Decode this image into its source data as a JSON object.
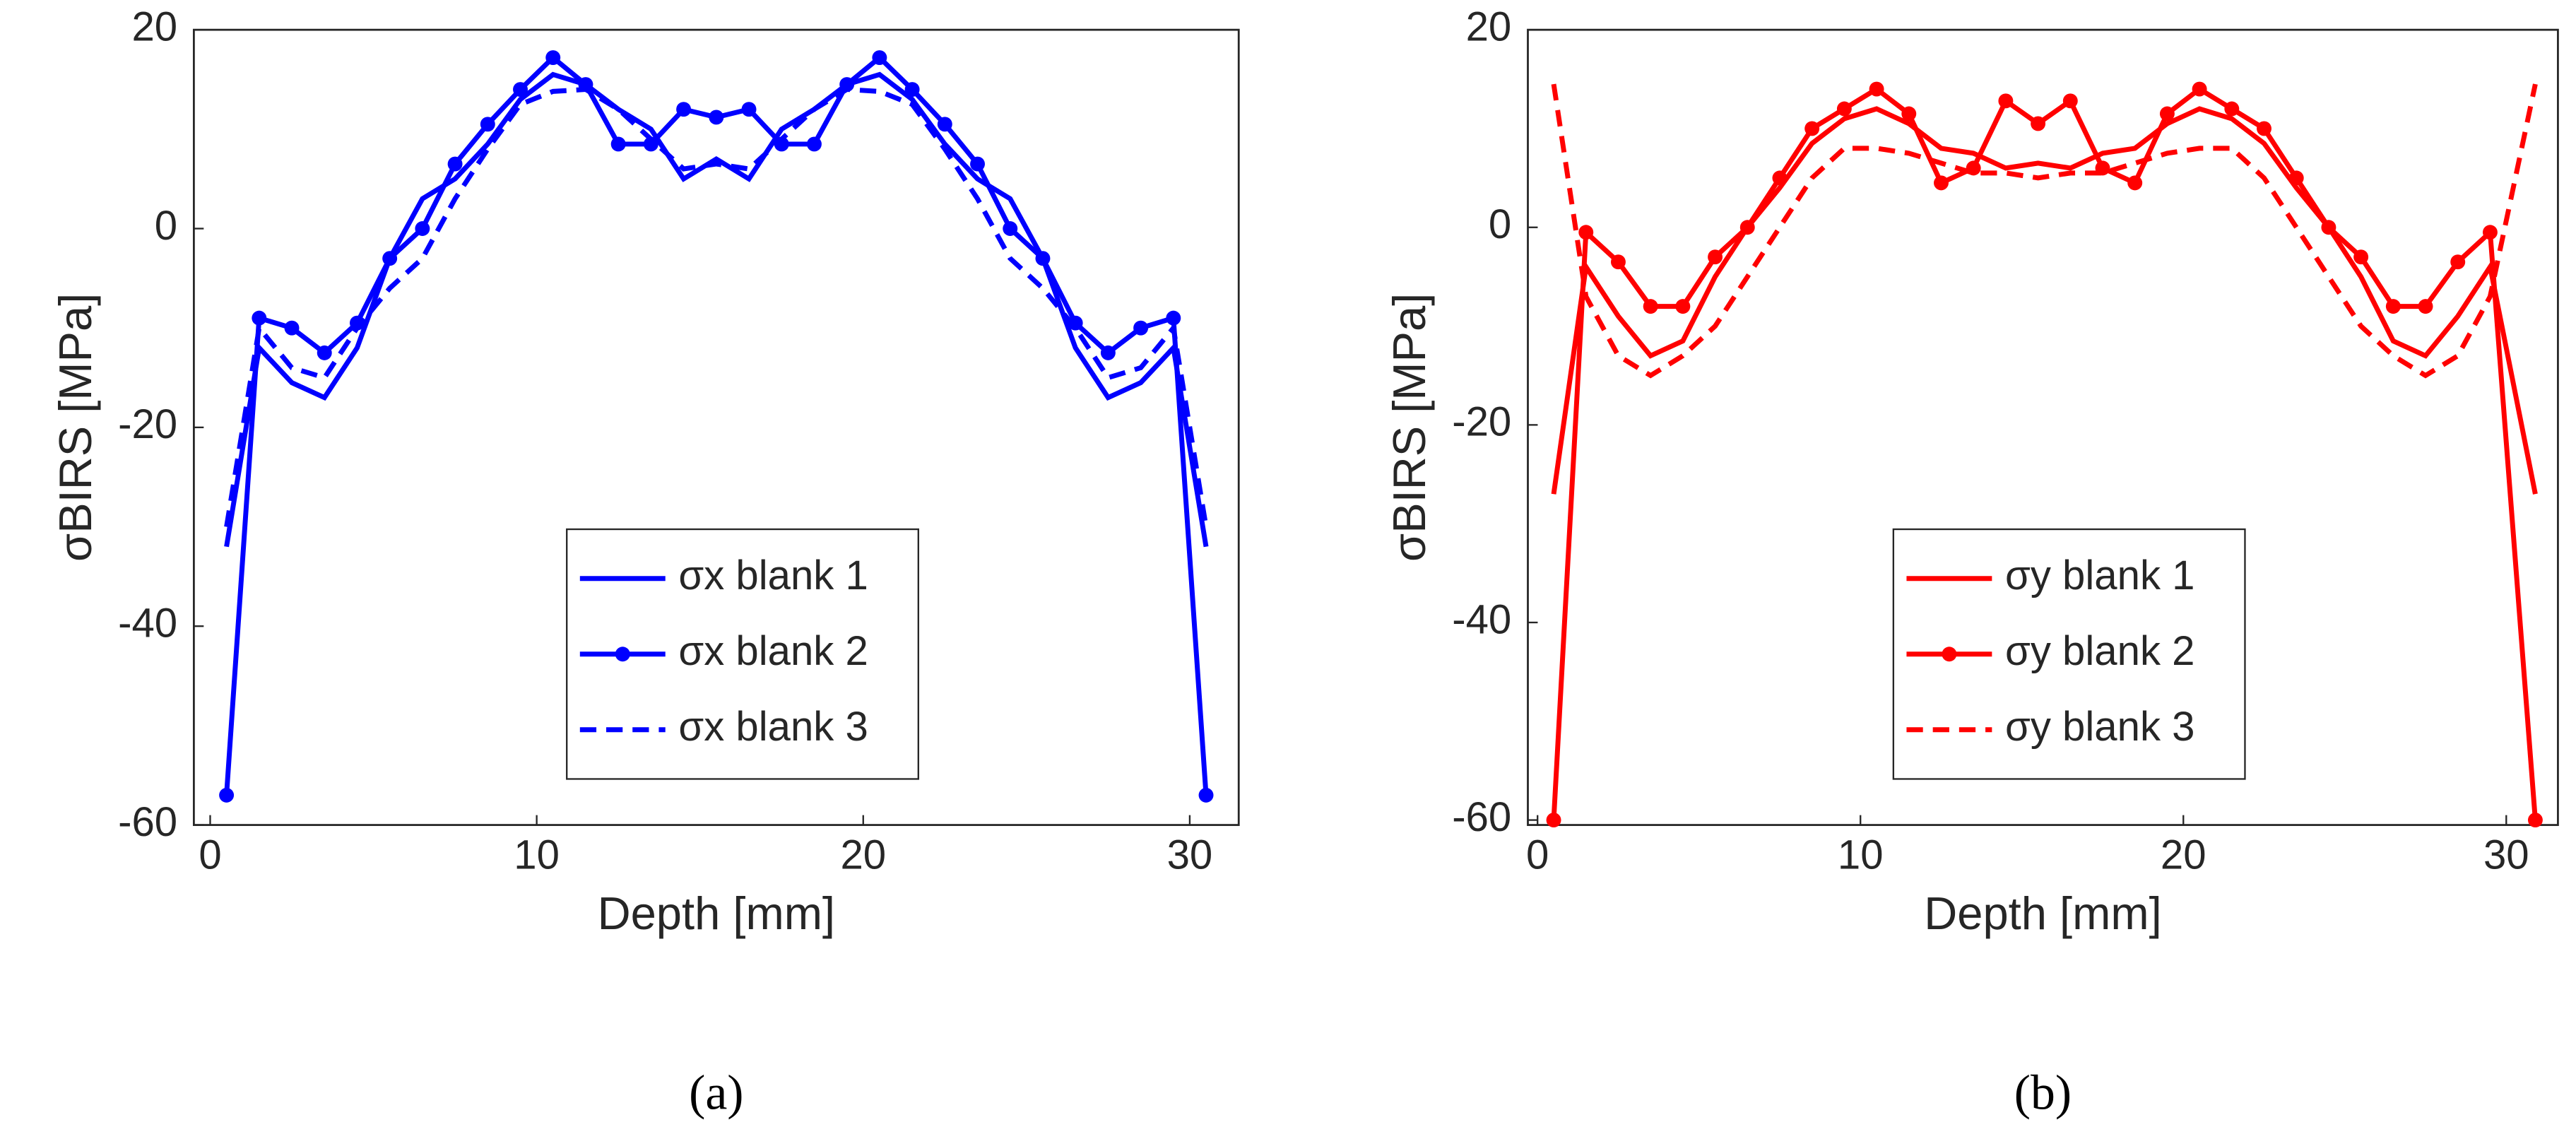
{
  "chart_data": [
    {
      "type": "line",
      "caption": "(a)",
      "xlabel": "Depth [mm]",
      "ylabel": "σBIRS [MPa]",
      "x": [
        0.5,
        1.5,
        2.5,
        3.5,
        4.5,
        5.5,
        6.5,
        7.5,
        8.5,
        9.5,
        10.5,
        11.5,
        12.5,
        13.5,
        14.5,
        15.5,
        16.5,
        17.5,
        18.5,
        19.5,
        20.5,
        21.5,
        22.5,
        23.5,
        24.5,
        25.5,
        26.5,
        27.5,
        28.5,
        29.5,
        30.5
      ],
      "xlim": [
        -0.5,
        31.5
      ],
      "xticks": [
        0,
        10,
        20,
        30
      ],
      "ylim": [
        -60,
        20
      ],
      "yticks": [
        -60,
        -40,
        -20,
        0,
        20
      ],
      "legend": "lower center",
      "series": [
        {
          "name": "σx blank 1",
          "color": "#0000ff",
          "style": "solid",
          "values": [
            -32,
            -12,
            -15.5,
            -17,
            -12,
            -3,
            3,
            5,
            8.5,
            13,
            15.5,
            14.5,
            12,
            10,
            5,
            7,
            5,
            10,
            12,
            14.5,
            15.5,
            13,
            8.5,
            5,
            3,
            -3,
            -12,
            -17,
            -15.5,
            -12,
            -32
          ]
        },
        {
          "name": "σx blank 2",
          "color": "#0000ff",
          "style": "marker",
          "values": [
            -57,
            -9,
            -10,
            -12.5,
            -9.5,
            -3,
            0,
            6.5,
            10.5,
            14,
            17.2,
            14.5,
            8.5,
            8.5,
            12,
            11.2,
            12,
            8.5,
            8.5,
            14.5,
            17.2,
            14,
            10.5,
            6.5,
            0,
            -3,
            -9.5,
            -12.5,
            -10,
            -9,
            -57
          ]
        },
        {
          "name": "σx blank 3",
          "color": "#0000ff",
          "style": "dashed",
          "values": [
            -30,
            -10,
            -14,
            -15,
            -10,
            -6,
            -3,
            3,
            8,
            12.5,
            13.8,
            14,
            12,
            9,
            6,
            6.5,
            6,
            9,
            12,
            14,
            13.8,
            12.5,
            8,
            3,
            -3,
            -6,
            -10,
            -15,
            -14,
            -10,
            -30
          ]
        }
      ]
    },
    {
      "type": "line",
      "caption": "(b)",
      "xlabel": "Depth [mm]",
      "ylabel": "σBIRS [MPa]",
      "x": [
        0.5,
        1.5,
        2.5,
        3.5,
        4.5,
        5.5,
        6.5,
        7.5,
        8.5,
        9.5,
        10.5,
        11.5,
        12.5,
        13.5,
        14.5,
        15.5,
        16.5,
        17.5,
        18.5,
        19.5,
        20.5,
        21.5,
        22.5,
        23.5,
        24.5,
        25.5,
        26.5,
        27.5,
        28.5,
        29.5,
        30.9
      ],
      "xlim": [
        -0.3,
        31.6
      ],
      "xticks": [
        0,
        10,
        20,
        30
      ],
      "ylim": [
        -60.5,
        20
      ],
      "yticks": [
        -60,
        -40,
        -20,
        0,
        20
      ],
      "legend": "lower center",
      "series": [
        {
          "name": "σy blank 1",
          "color": "#ff0000",
          "style": "solid",
          "values": [
            -27,
            -4,
            -9,
            -13,
            -11.5,
            -5,
            0,
            4,
            8.5,
            11,
            12,
            10.5,
            8,
            7.5,
            6,
            6.5,
            6,
            7.5,
            8,
            10.5,
            12,
            11,
            8.5,
            4,
            0,
            -5,
            -11.5,
            -13,
            -9,
            -4,
            -27
          ]
        },
        {
          "name": "σy blank 2",
          "color": "#ff0000",
          "style": "marker",
          "values": [
            -60,
            -0.5,
            -3.5,
            -8,
            -8,
            -3,
            0,
            5,
            10,
            12,
            14,
            11.5,
            4.5,
            6,
            12.8,
            10.5,
            12.8,
            6,
            4.5,
            11.5,
            14,
            12,
            10,
            5,
            0,
            -3,
            -8,
            -8,
            -3.5,
            -0.5,
            -60
          ]
        },
        {
          "name": "σy blank 3",
          "color": "#ff0000",
          "style": "dashed",
          "values": [
            14.5,
            -7,
            -13,
            -15,
            -13,
            -10,
            -5,
            0,
            5,
            8,
            8,
            7.5,
            6.5,
            5.5,
            5.5,
            5,
            5.5,
            5.5,
            6.5,
            7.5,
            8,
            8,
            5,
            0,
            -5,
            -10,
            -13,
            -15,
            -13,
            -7,
            14.5
          ]
        }
      ]
    }
  ]
}
